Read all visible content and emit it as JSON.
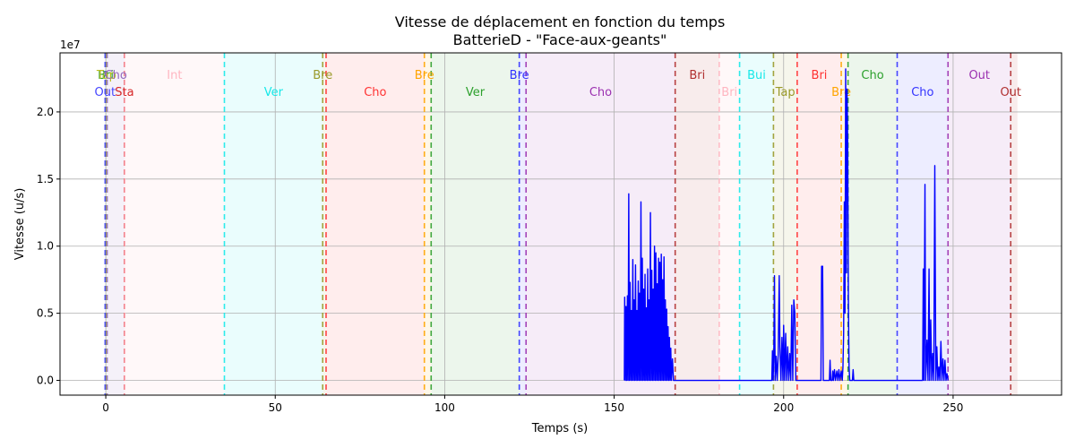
{
  "chart_data": {
    "type": "line",
    "title": "Vitesse de déplacement en fonction du temps",
    "subtitle": "BatterieD - \"Face-aux-geants\"",
    "xlabel": "Temps (s)",
    "ylabel": "Vitesse (u/s)",
    "y_multiplier_label": "1e7",
    "xlim": [
      -13.5,
      282
    ],
    "ylim": [
      -1.1,
      24.4
    ],
    "x_ticks": [
      0,
      50,
      100,
      150,
      200,
      250
    ],
    "x_tick_labels": [
      "0",
      "50",
      "100",
      "150",
      "200",
      "250"
    ],
    "y_ticks": [
      0,
      5,
      10,
      15,
      20
    ],
    "y_tick_labels": [
      "0.0",
      "0.5",
      "1.0",
      "1.5",
      "2.0"
    ],
    "grid": true,
    "line_color": "#0000ff",
    "segments": [
      {
        "start": 0,
        "end": 0.2,
        "label": "Bri",
        "color": "#2ca02c",
        "row": 0
      },
      {
        "start": 0.2,
        "end": 0.4,
        "label": "Tap",
        "color": "#bcbd22",
        "row": 0
      },
      {
        "start": 0.4,
        "end": 5.5,
        "label": "Cho",
        "color": "#9467bd",
        "row": 0
      },
      {
        "start": -0.2,
        "end": 0.2,
        "label": "Out",
        "color": "#4444ff",
        "row": 1
      },
      {
        "start": 5.5,
        "end": 5.6,
        "label": "Sta",
        "color": "#d62728",
        "row": 1
      },
      {
        "start": 5.6,
        "end": 35,
        "label": "Int",
        "color": "#ffb6c1",
        "row": 0
      },
      {
        "start": 35,
        "end": 64,
        "label": "Ver",
        "color": "#17e8e8",
        "row": 1
      },
      {
        "start": 64,
        "end": 65,
        "label": "Bre",
        "color": "#9a9a2a",
        "row": 0
      },
      {
        "start": 65,
        "end": 94,
        "label": "Cho",
        "color": "#ff3333",
        "row": 1
      },
      {
        "start": 94,
        "end": 96,
        "label": "Bre",
        "color": "#ffa500",
        "row": 0
      },
      {
        "start": 96,
        "end": 122,
        "label": "Ver",
        "color": "#2ca02c",
        "row": 1
      },
      {
        "start": 122,
        "end": 124,
        "label": "Bre",
        "color": "#3333ff",
        "row": 0
      },
      {
        "start": 124,
        "end": 168,
        "label": "Cho",
        "color": "#9b30b0",
        "row": 1
      },
      {
        "start": 168,
        "end": 181,
        "label": "Bri",
        "color": "#b03030",
        "row": 0
      },
      {
        "start": 181,
        "end": 187,
        "label": "Bri",
        "color": "#ffb6c1",
        "row": 1
      },
      {
        "start": 187,
        "end": 197,
        "label": "Bui",
        "color": "#17e8e8",
        "row": 0
      },
      {
        "start": 197,
        "end": 204,
        "label": "Tap",
        "color": "#9a9a2a",
        "row": 1
      },
      {
        "start": 204,
        "end": 217,
        "label": "Bri",
        "color": "#ff3333",
        "row": 0
      },
      {
        "start": 217,
        "end": 219,
        "label": "Bre",
        "color": "#ffa500",
        "row": 1
      },
      {
        "start": 219,
        "end": 233.5,
        "label": "Cho",
        "color": "#2ca02c",
        "row": 0
      },
      {
        "start": 233.5,
        "end": 248.5,
        "label": "Cho",
        "color": "#3333ff",
        "row": 1
      },
      {
        "start": 248.5,
        "end": 267,
        "label": "Out",
        "color": "#9b30b0",
        "row": 0
      },
      {
        "start": 267,
        "end": 269,
        "label": "Out",
        "color": "#b03030",
        "row": 1
      }
    ],
    "series": [
      {
        "points": [
          [
            153,
            0
          ],
          [
            153.1,
            6.2
          ],
          [
            153.3,
            0
          ],
          [
            153.5,
            5.5
          ],
          [
            153.7,
            0
          ],
          [
            153.9,
            6.3
          ],
          [
            154.1,
            0
          ],
          [
            154.3,
            13.9
          ],
          [
            154.5,
            0
          ],
          [
            154.7,
            7.3
          ],
          [
            154.9,
            0
          ],
          [
            155.1,
            5.2
          ],
          [
            155.3,
            0
          ],
          [
            155.5,
            9.0
          ],
          [
            155.7,
            0
          ],
          [
            155.9,
            6.0
          ],
          [
            156.1,
            0
          ],
          [
            156.3,
            8.6
          ],
          [
            156.5,
            0
          ],
          [
            156.7,
            5.2
          ],
          [
            156.9,
            0
          ],
          [
            157.1,
            7.4
          ],
          [
            157.3,
            0
          ],
          [
            157.5,
            6.5
          ],
          [
            157.7,
            0
          ],
          [
            157.9,
            13.3
          ],
          [
            158.1,
            0
          ],
          [
            158.3,
            9.1
          ],
          [
            158.5,
            0
          ],
          [
            158.7,
            6.8
          ],
          [
            158.9,
            0
          ],
          [
            159.1,
            7.9
          ],
          [
            159.3,
            0
          ],
          [
            159.5,
            5.4
          ],
          [
            159.7,
            0
          ],
          [
            159.9,
            8.3
          ],
          [
            160.1,
            0
          ],
          [
            160.3,
            6.0
          ],
          [
            160.5,
            0
          ],
          [
            160.7,
            12.5
          ],
          [
            160.9,
            0
          ],
          [
            161.1,
            8.2
          ],
          [
            161.3,
            0
          ],
          [
            161.5,
            6.8
          ],
          [
            161.7,
            0
          ],
          [
            161.9,
            10.0
          ],
          [
            162.1,
            0
          ],
          [
            162.3,
            9.5
          ],
          [
            162.5,
            0
          ],
          [
            162.7,
            7.2
          ],
          [
            162.9,
            0
          ],
          [
            163.1,
            9.1
          ],
          [
            163.3,
            0
          ],
          [
            163.5,
            8.8
          ],
          [
            163.7,
            0
          ],
          [
            163.9,
            9.4
          ],
          [
            164.1,
            0
          ],
          [
            164.3,
            7.5
          ],
          [
            164.5,
            0
          ],
          [
            164.7,
            9.2
          ],
          [
            164.9,
            0
          ],
          [
            165.1,
            6.0
          ],
          [
            165.3,
            0
          ],
          [
            165.5,
            5.3
          ],
          [
            165.7,
            0
          ],
          [
            165.9,
            4.0
          ],
          [
            166.1,
            0
          ],
          [
            166.3,
            3.2
          ],
          [
            166.5,
            0
          ],
          [
            166.7,
            2.4
          ],
          [
            166.9,
            0
          ],
          [
            167.2,
            1.6
          ],
          [
            167.5,
            0
          ],
          [
            168,
            0
          ],
          [
            196.5,
            0
          ],
          [
            196.7,
            2.2
          ],
          [
            196.9,
            0
          ],
          [
            197.1,
            2.0
          ],
          [
            197.3,
            7.8
          ],
          [
            197.5,
            0
          ],
          [
            197.8,
            1.8
          ],
          [
            198.1,
            0
          ],
          [
            198.4,
            1.9
          ],
          [
            198.7,
            7.8
          ],
          [
            198.9,
            2.5
          ],
          [
            199.2,
            0
          ],
          [
            199.5,
            3.2
          ],
          [
            199.8,
            0
          ],
          [
            200.0,
            4.1
          ],
          [
            200.3,
            0
          ],
          [
            200.6,
            3.5
          ],
          [
            200.9,
            0
          ],
          [
            201.2,
            2.5
          ],
          [
            201.5,
            0
          ],
          [
            201.8,
            2.0
          ],
          [
            202.1,
            0
          ],
          [
            202.4,
            5.6
          ],
          [
            202.7,
            0
          ],
          [
            203.0,
            6.0
          ],
          [
            203.3,
            5.0
          ],
          [
            203.6,
            0
          ],
          [
            204,
            0
          ],
          [
            211,
            0
          ],
          [
            211.2,
            8.5
          ],
          [
            211.5,
            8.5
          ],
          [
            211.7,
            0
          ],
          [
            213.5,
            0
          ],
          [
            213.7,
            1.5
          ],
          [
            213.9,
            0
          ],
          [
            214.3,
            0
          ],
          [
            214.5,
            0.7
          ],
          [
            214.7,
            0
          ],
          [
            215.0,
            0.8
          ],
          [
            215.3,
            0
          ],
          [
            215.7,
            0.7
          ],
          [
            216.0,
            0
          ],
          [
            216.3,
            0.8
          ],
          [
            216.6,
            0
          ],
          [
            217.0,
            0.7
          ],
          [
            217.3,
            0
          ],
          [
            217.5,
            1.0
          ],
          [
            217.7,
            3.5
          ],
          [
            217.9,
            13.3
          ],
          [
            218.1,
            5.0
          ],
          [
            218.3,
            23.2
          ],
          [
            218.5,
            8.0
          ],
          [
            218.7,
            21.7
          ],
          [
            218.9,
            17.6
          ],
          [
            219.1,
            6.0
          ],
          [
            219.3,
            1.0
          ],
          [
            219.5,
            0
          ],
          [
            220.3,
            0
          ],
          [
            220.5,
            0.8
          ],
          [
            220.7,
            0
          ],
          [
            221,
            0
          ],
          [
            241,
            0
          ],
          [
            241.2,
            8.3
          ],
          [
            241.4,
            0
          ],
          [
            241.7,
            14.6
          ],
          [
            241.9,
            0
          ],
          [
            242.3,
            3.0
          ],
          [
            242.6,
            0
          ],
          [
            242.9,
            8.3
          ],
          [
            243.1,
            0
          ],
          [
            243.4,
            4.5
          ],
          [
            243.7,
            0
          ],
          [
            244.0,
            2.0
          ],
          [
            244.3,
            0
          ],
          [
            244.6,
            16.0
          ],
          [
            244.9,
            0
          ],
          [
            245.2,
            2.5
          ],
          [
            245.5,
            0
          ],
          [
            245.8,
            1.0
          ],
          [
            246.1,
            0
          ],
          [
            246.4,
            2.9
          ],
          [
            246.7,
            0
          ],
          [
            247.0,
            1.6
          ],
          [
            247.3,
            0
          ],
          [
            247.6,
            1.5
          ],
          [
            247.9,
            0
          ],
          [
            248.2,
            0.5
          ],
          [
            248.5,
            0
          ]
        ]
      }
    ]
  }
}
